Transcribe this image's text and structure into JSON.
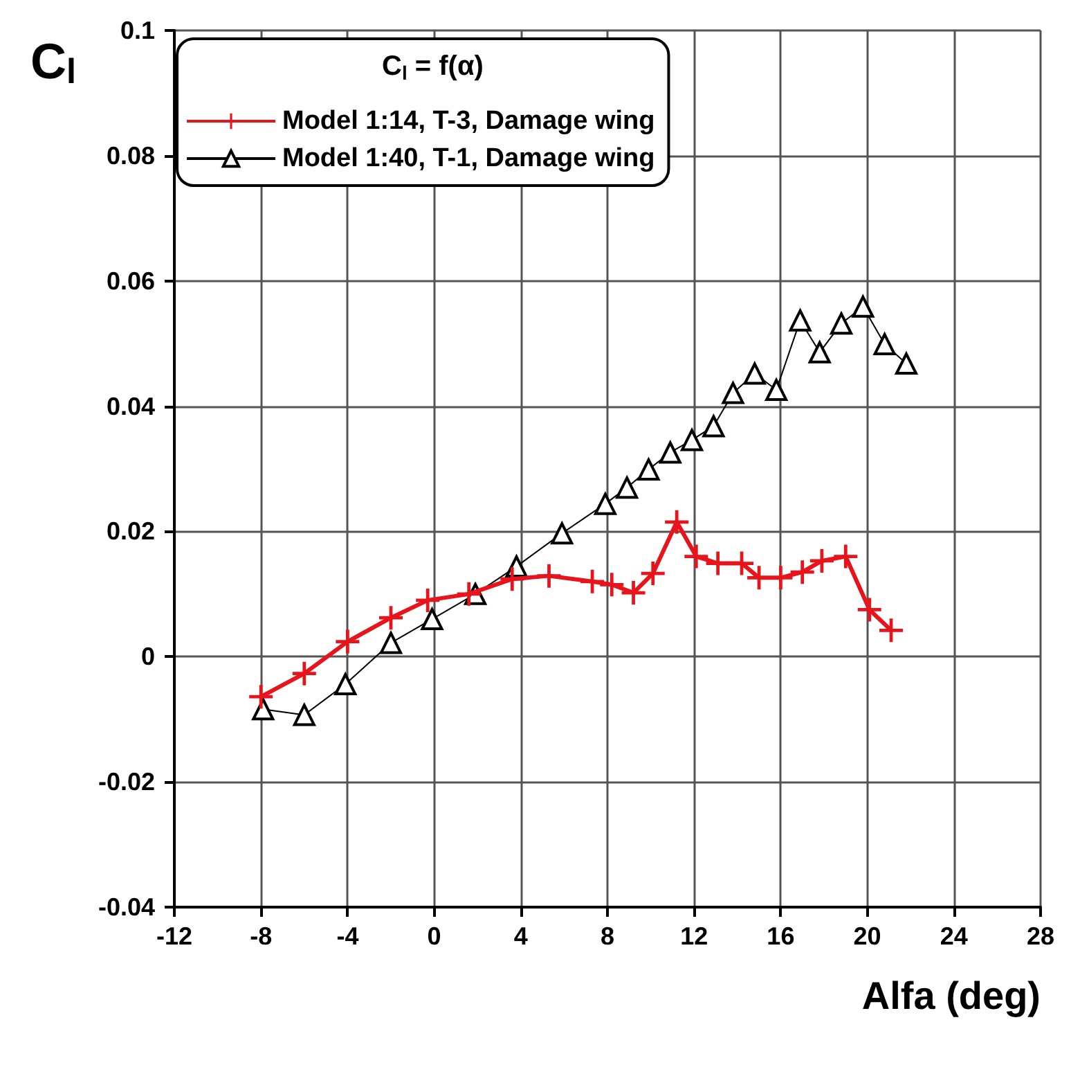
{
  "chart_data": {
    "type": "line",
    "xlabel": "Alfa (deg)",
    "ylabel": "C$_{l}$",
    "legend_title": "C$_{l}$ = f(α)",
    "xlim": [
      -12,
      28
    ],
    "xticks": [
      -12,
      -8,
      -4,
      0,
      4,
      8,
      12,
      16,
      20,
      24,
      28
    ],
    "ylim": [
      -0.04,
      0.1
    ],
    "yticks": [
      -0.04,
      -0.02,
      0,
      0.02,
      0.04,
      0.06,
      0.08,
      0.1
    ],
    "grid": true,
    "legend": "top left",
    "line_style": "solid",
    "series": [
      {
        "name": "Model 1:14, T-3, Damage wing",
        "color": "#e8141c",
        "marker": "cross",
        "x": [
          -8,
          -6,
          -4,
          -2,
          -0.3,
          1.6,
          3.6,
          5.3,
          7.3,
          8.2,
          9.2,
          10.1,
          11.2,
          12.1,
          13.1,
          14.2,
          15.0,
          16.0,
          17.0,
          17.9,
          19.0,
          20.1,
          21.1
        ],
        "values": [
          -0.0064,
          -0.0027,
          0.0024,
          0.0062,
          0.009,
          0.01,
          0.0124,
          0.0129,
          0.012,
          0.0115,
          0.0102,
          0.0133,
          0.0215,
          0.016,
          0.0149,
          0.0149,
          0.0126,
          0.0126,
          0.0135,
          0.0153,
          0.016,
          0.0075,
          0.0042
        ]
      },
      {
        "name": "Model 1:40, T-1, Damage wing",
        "color": "#000000",
        "marker": "triangle",
        "x": [
          -7.9,
          -6,
          -4.1,
          -2,
          -0.1,
          1.9,
          3.8,
          5.9,
          7.9,
          8.9,
          9.9,
          10.9,
          11.9,
          12.9,
          13.8,
          14.8,
          15.8,
          16.9,
          17.8,
          18.8,
          19.8,
          20.8,
          21.8
        ],
        "values": [
          -0.0084,
          -0.0093,
          -0.0044,
          0.0022,
          0.006,
          0.01,
          0.0144,
          0.0197,
          0.0244,
          0.027,
          0.0299,
          0.0326,
          0.0346,
          0.0368,
          0.0421,
          0.0452,
          0.0426,
          0.0537,
          0.0486,
          0.0532,
          0.0559,
          0.0499,
          0.0468
        ]
      }
    ]
  }
}
